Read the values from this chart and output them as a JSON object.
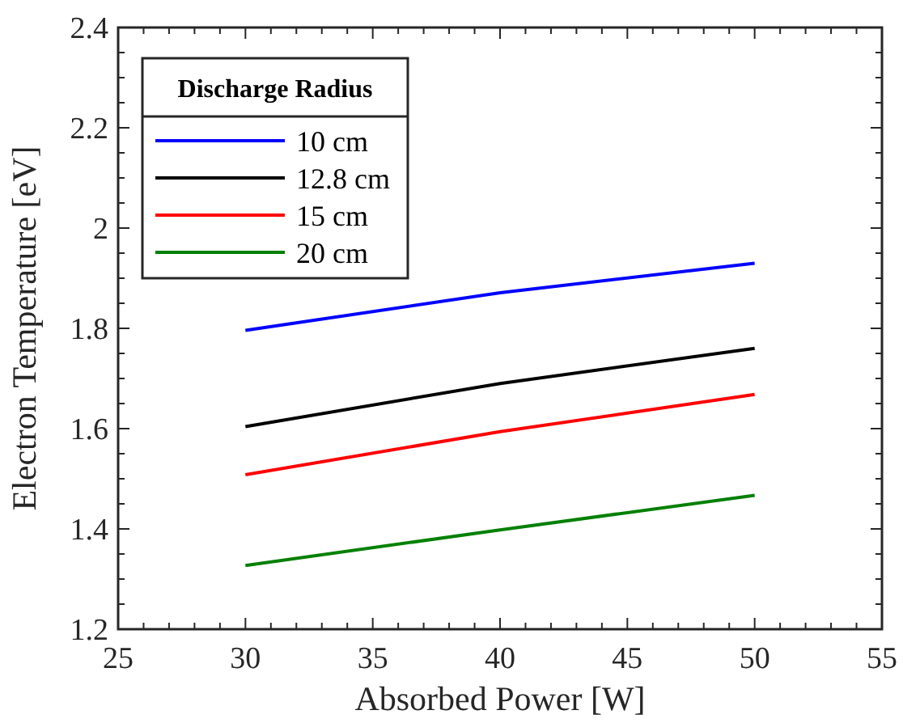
{
  "chart_data": {
    "type": "line",
    "xlabel": "Absorbed Power [W]",
    "ylabel": "Electron Temperature [eV]",
    "legend_title": "Discharge Radius",
    "legend": "top left",
    "x": [
      30,
      40,
      50
    ],
    "xlim": [
      25,
      55
    ],
    "ylim": [
      1.2,
      2.4
    ],
    "xticks": [
      25,
      {
        "value": 26,
        "label": null
      },
      {
        "value": 27,
        "label": null
      },
      {
        "value": 28,
        "label": null
      },
      {
        "value": 29,
        "label": null
      },
      30,
      {
        "value": 31,
        "label": null
      },
      {
        "value": 32,
        "label": null
      },
      {
        "value": 33,
        "label": null
      },
      {
        "value": 34,
        "label": null
      },
      35,
      {
        "value": 36,
        "label": null
      },
      {
        "value": 37,
        "label": null
      },
      {
        "value": 38,
        "label": null
      },
      {
        "value": 39,
        "label": null
      },
      40,
      {
        "value": 41,
        "label": null
      },
      {
        "value": 42,
        "label": null
      },
      {
        "value": 43,
        "label": null
      },
      {
        "value": 44,
        "label": null
      },
      45,
      {
        "value": 46,
        "label": null
      },
      {
        "value": 47,
        "label": null
      },
      {
        "value": 48,
        "label": null
      },
      {
        "value": 49,
        "label": null
      },
      50,
      {
        "value": 51,
        "label": null
      },
      {
        "value": 52,
        "label": null
      },
      {
        "value": 53,
        "label": null
      },
      {
        "value": 54,
        "label": null
      },
      55
    ],
    "yticks": [
      1.2,
      {
        "value": 1.25,
        "label": null
      },
      {
        "value": 1.3,
        "label": null
      },
      {
        "value": 1.35,
        "label": null
      },
      1.4,
      {
        "value": 1.45,
        "label": null
      },
      {
        "value": 1.5,
        "label": null
      },
      {
        "value": 1.55,
        "label": null
      },
      1.6,
      {
        "value": 1.65,
        "label": null
      },
      {
        "value": 1.7,
        "label": null
      },
      {
        "value": 1.75,
        "label": null
      },
      1.8,
      {
        "value": 1.85,
        "label": null
      },
      {
        "value": 1.9,
        "label": null
      },
      {
        "value": 1.95,
        "label": null
      },
      2,
      {
        "value": 2.05,
        "label": null
      },
      {
        "value": 2.1,
        "label": null
      },
      {
        "value": 2.15,
        "label": null
      },
      2.2,
      {
        "value": 2.25,
        "label": null
      },
      {
        "value": 2.3,
        "label": null
      },
      {
        "value": 2.35,
        "label": null
      },
      2.4
    ],
    "series": [
      {
        "name": "10 cm",
        "color": "#0000ff",
        "values": [
          1.796,
          1.871,
          1.93
        ]
      },
      {
        "name": "12.8 cm",
        "color": "#000000",
        "values": [
          1.604,
          1.69,
          1.76
        ]
      },
      {
        "name": "15 cm",
        "color": "#ff0000",
        "values": [
          1.508,
          1.594,
          1.668
        ]
      },
      {
        "name": "20 cm",
        "color": "#008000",
        "values": [
          1.327,
          1.398,
          1.467
        ]
      }
    ]
  }
}
